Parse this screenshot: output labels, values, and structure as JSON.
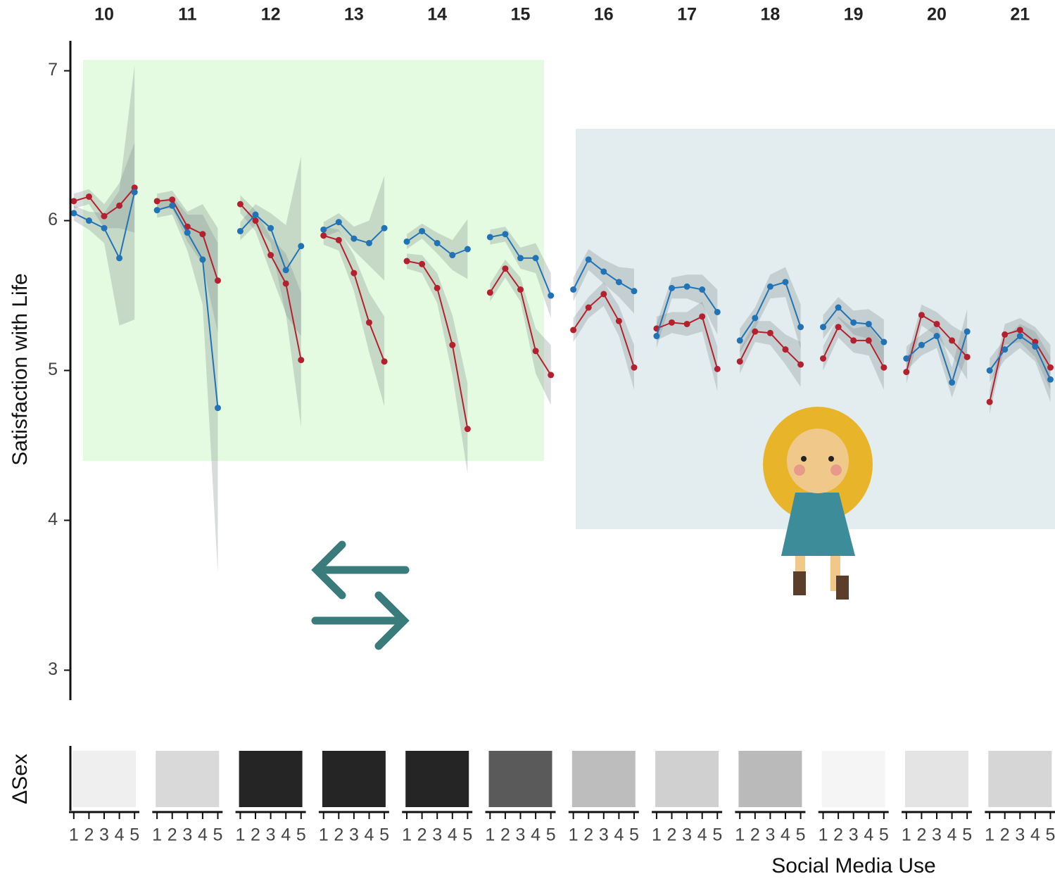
{
  "chart_data": {
    "type": "line",
    "y_label": "Satisfaction with Life",
    "x_label": "Social Media Use",
    "strip_label": "ΔSex",
    "ylim": [
      2.8,
      7.2
    ],
    "yticks": [
      3,
      4,
      5,
      6,
      7
    ],
    "x": [
      1,
      2,
      3,
      4,
      5
    ],
    "xlim": [
      0.8,
      5.2
    ],
    "facets": [
      10,
      11,
      12,
      13,
      14,
      15,
      16,
      17,
      18,
      19,
      20,
      21
    ],
    "strip_colors": [
      "#efefef",
      "#d9d9d9",
      "#252525",
      "#252525",
      "#252525",
      "#5a5a5a",
      "#bdbdbd",
      "#d0d0d0",
      "#bababa",
      "#f5f5f5",
      "#e4e4e4",
      "#d6d6d6"
    ],
    "ribbon_color": "#7f8c8c",
    "panels": [
      {
        "series": [
          {
            "color": "#b5202e",
            "values": [
              6.13,
              6.16,
              6.03,
              6.1,
              6.22
            ],
            "ci": [
              0.05,
              0.05,
              0.08,
              0.15,
              0.3
            ]
          },
          {
            "color": "#2273b5",
            "values": [
              6.05,
              6.0,
              5.95,
              5.75,
              6.19
            ],
            "ci": [
              0.05,
              0.06,
              0.1,
              0.45,
              0.85
            ]
          }
        ]
      },
      {
        "series": [
          {
            "color": "#b5202e",
            "values": [
              6.13,
              6.14,
              5.96,
              5.91,
              5.6
            ],
            "ci": [
              0.05,
              0.06,
              0.1,
              0.2,
              0.35
            ]
          },
          {
            "color": "#2273b5",
            "values": [
              6.07,
              6.1,
              5.92,
              5.74,
              4.75
            ],
            "ci": [
              0.05,
              0.06,
              0.12,
              0.3,
              1.1
            ]
          }
        ]
      },
      {
        "series": [
          {
            "color": "#b5202e",
            "values": [
              6.11,
              6.0,
              5.77,
              5.58,
              5.07
            ],
            "ci": [
              0.06,
              0.07,
              0.12,
              0.2,
              0.45
            ]
          },
          {
            "color": "#2273b5",
            "values": [
              5.93,
              6.04,
              5.95,
              5.67,
              5.83
            ],
            "ci": [
              0.06,
              0.07,
              0.1,
              0.3,
              0.6
            ]
          }
        ]
      },
      {
        "series": [
          {
            "color": "#b5202e",
            "values": [
              5.9,
              5.87,
              5.65,
              5.32,
              5.06
            ],
            "ci": [
              0.06,
              0.07,
              0.12,
              0.2,
              0.3
            ]
          },
          {
            "color": "#2273b5",
            "values": [
              5.94,
              5.99,
              5.88,
              5.85,
              5.95
            ],
            "ci": [
              0.05,
              0.06,
              0.08,
              0.15,
              0.35
            ]
          }
        ]
      },
      {
        "series": [
          {
            "color": "#b5202e",
            "values": [
              5.73,
              5.71,
              5.55,
              5.17,
              4.61
            ],
            "ci": [
              0.05,
              0.06,
              0.1,
              0.2,
              0.3
            ]
          },
          {
            "color": "#2273b5",
            "values": [
              5.86,
              5.93,
              5.85,
              5.77,
              5.81
            ],
            "ci": [
              0.05,
              0.05,
              0.07,
              0.1,
              0.2
            ]
          }
        ]
      },
      {
        "series": [
          {
            "color": "#b5202e",
            "values": [
              5.52,
              5.68,
              5.54,
              5.13,
              4.97
            ],
            "ci": [
              0.06,
              0.06,
              0.08,
              0.15,
              0.2
            ]
          },
          {
            "color": "#2273b5",
            "values": [
              5.89,
              5.91,
              5.75,
              5.75,
              5.5
            ],
            "ci": [
              0.05,
              0.05,
              0.07,
              0.1,
              0.15
            ]
          }
        ]
      },
      {
        "series": [
          {
            "color": "#b5202e",
            "values": [
              5.27,
              5.42,
              5.51,
              5.33,
              5.02
            ],
            "ci": [
              0.08,
              0.07,
              0.08,
              0.1,
              0.15
            ]
          },
          {
            "color": "#2273b5",
            "values": [
              5.54,
              5.74,
              5.66,
              5.59,
              5.53
            ],
            "ci": [
              0.08,
              0.07,
              0.08,
              0.1,
              0.15
            ]
          }
        ]
      },
      {
        "series": [
          {
            "color": "#b5202e",
            "values": [
              5.28,
              5.32,
              5.31,
              5.36,
              5.01
            ],
            "ci": [
              0.08,
              0.07,
              0.08,
              0.1,
              0.15
            ]
          },
          {
            "color": "#2273b5",
            "values": [
              5.23,
              5.55,
              5.56,
              5.54,
              5.39
            ],
            "ci": [
              0.08,
              0.07,
              0.08,
              0.1,
              0.15
            ]
          }
        ]
      },
      {
        "series": [
          {
            "color": "#b5202e",
            "values": [
              5.06,
              5.26,
              5.25,
              5.14,
              5.04
            ],
            "ci": [
              0.08,
              0.07,
              0.08,
              0.1,
              0.15
            ]
          },
          {
            "color": "#2273b5",
            "values": [
              5.2,
              5.35,
              5.56,
              5.59,
              5.29
            ],
            "ci": [
              0.08,
              0.07,
              0.08,
              0.1,
              0.15
            ]
          }
        ]
      },
      {
        "series": [
          {
            "color": "#b5202e",
            "values": [
              5.08,
              5.29,
              5.2,
              5.2,
              5.02
            ],
            "ci": [
              0.08,
              0.07,
              0.08,
              0.1,
              0.15
            ]
          },
          {
            "color": "#2273b5",
            "values": [
              5.29,
              5.42,
              5.32,
              5.31,
              5.19
            ],
            "ci": [
              0.08,
              0.07,
              0.08,
              0.1,
              0.15
            ]
          }
        ]
      },
      {
        "series": [
          {
            "color": "#b5202e",
            "values": [
              4.99,
              5.37,
              5.31,
              5.2,
              5.09
            ],
            "ci": [
              0.08,
              0.07,
              0.08,
              0.1,
              0.15
            ]
          },
          {
            "color": "#2273b5",
            "values": [
              5.08,
              5.17,
              5.23,
              4.92,
              5.26
            ],
            "ci": [
              0.08,
              0.07,
              0.08,
              0.1,
              0.15
            ]
          }
        ]
      },
      {
        "series": [
          {
            "color": "#b5202e",
            "values": [
              4.79,
              5.24,
              5.27,
              5.19,
              5.02
            ],
            "ci": [
              0.08,
              0.07,
              0.08,
              0.1,
              0.15
            ]
          },
          {
            "color": "#2273b5",
            "values": [
              5.0,
              5.14,
              5.23,
              5.16,
              4.94
            ],
            "ci": [
              0.08,
              0.07,
              0.08,
              0.1,
              0.15
            ]
          }
        ]
      }
    ]
  }
}
